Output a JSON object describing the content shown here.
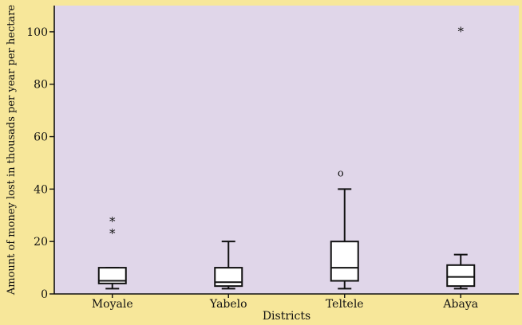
{
  "chart_data": {
    "type": "boxplot",
    "xlabel": "Districts",
    "ylabel": "Amount of money lost in thousads per year per hectare",
    "ylim": [
      0,
      110
    ],
    "yticks": [
      0,
      20,
      40,
      60,
      80,
      100
    ],
    "grid": false,
    "categories": [
      "Moyale",
      "Yabelo",
      "Teltele",
      "Abaya"
    ],
    "boxes": [
      {
        "category": "Moyale",
        "whisker_low": 2,
        "q1": 4,
        "median": 5,
        "q3": 10,
        "whisker_high": 10,
        "outliers": [],
        "extremes": [
          24,
          28.5
        ]
      },
      {
        "category": "Yabelo",
        "whisker_low": 2,
        "q1": 3,
        "median": 4.5,
        "q3": 10,
        "whisker_high": 20,
        "outliers": [],
        "extremes": []
      },
      {
        "category": "Teltele",
        "whisker_low": 2,
        "q1": 5,
        "median": 10,
        "q3": 20,
        "whisker_high": 40,
        "outliers": [
          46
        ],
        "extremes": []
      },
      {
        "category": "Abaya",
        "whisker_low": 2,
        "q1": 3,
        "median": 6.5,
        "q3": 11,
        "whisker_high": 15,
        "outliers": [],
        "extremes": [
          101
        ]
      }
    ],
    "outlier_symbol": "o",
    "extreme_symbol": "*",
    "colors": {
      "page": "#f7e79a",
      "plot_bg": "#e0d6e9",
      "box_fill": "#ffffff",
      "stroke": "#111111"
    }
  }
}
